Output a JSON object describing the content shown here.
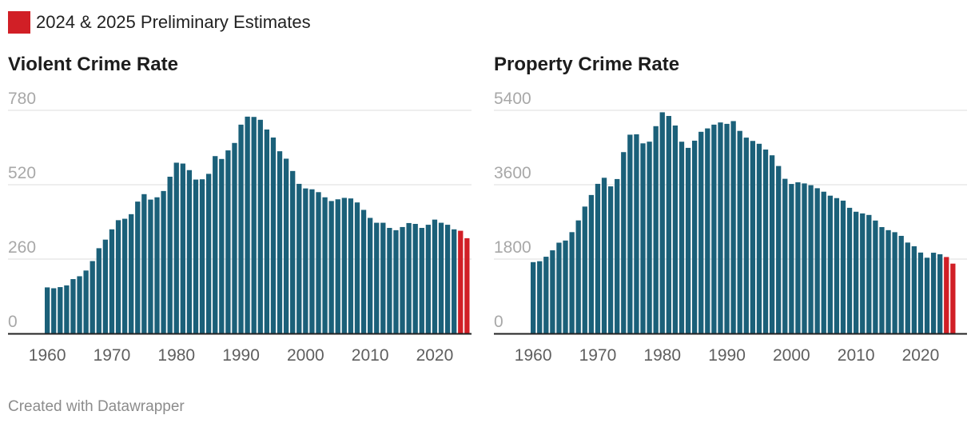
{
  "legend": {
    "label": "2024 & 2025 Preliminary Estimates",
    "color": "#d11f26"
  },
  "credit": "Created with Datawrapper",
  "colors": {
    "bar": "#1b6079",
    "estimate": "#d11f26",
    "grid": "#dddddd",
    "axis": "#222222"
  },
  "chart_data": [
    {
      "type": "bar",
      "title": "Violent Crime Rate",
      "ylim": [
        0,
        780
      ],
      "yticks": [
        "780",
        "520",
        "260",
        "0"
      ],
      "ytick_values": [
        780,
        520,
        260,
        0
      ],
      "xticks": [
        "1960",
        "1970",
        "1980",
        "1990",
        "2000",
        "2010",
        "2020"
      ],
      "xtick_values": [
        1960,
        1970,
        1980,
        1990,
        2000,
        2010,
        2020
      ],
      "estimate_years": [
        2024,
        2025
      ],
      "years": [
        1960,
        1961,
        1962,
        1963,
        1964,
        1965,
        1966,
        1967,
        1968,
        1969,
        1970,
        1971,
        1972,
        1973,
        1974,
        1975,
        1976,
        1977,
        1978,
        1979,
        1980,
        1981,
        1982,
        1983,
        1984,
        1985,
        1986,
        1987,
        1988,
        1989,
        1990,
        1991,
        1992,
        1993,
        1994,
        1995,
        1996,
        1997,
        1998,
        1999,
        2000,
        2001,
        2002,
        2003,
        2004,
        2005,
        2006,
        2007,
        2008,
        2009,
        2010,
        2011,
        2012,
        2013,
        2014,
        2015,
        2016,
        2017,
        2018,
        2019,
        2020,
        2021,
        2022,
        2023,
        2024,
        2025
      ],
      "values": [
        161,
        158,
        162,
        168,
        190,
        200,
        220,
        253,
        298,
        328,
        364,
        396,
        401,
        417,
        461,
        487,
        468,
        476,
        498,
        548,
        597,
        594,
        571,
        538,
        539,
        558,
        620,
        610,
        640,
        666,
        730,
        758,
        757,
        747,
        713,
        685,
        637,
        611,
        568,
        523,
        507,
        504,
        494,
        476,
        463,
        469,
        474,
        472,
        458,
        432,
        404,
        387,
        387,
        369,
        361,
        372,
        386,
        383,
        369,
        380,
        398,
        387,
        380,
        364,
        359,
        333
      ]
    },
    {
      "type": "bar",
      "title": "Property Crime Rate",
      "ylim": [
        0,
        5400
      ],
      "yticks": [
        "5400",
        "3600",
        "1800",
        "0"
      ],
      "ytick_values": [
        5400,
        3600,
        1800,
        0
      ],
      "xticks": [
        "1960",
        "1970",
        "1980",
        "1990",
        "2000",
        "2010",
        "2020"
      ],
      "xtick_values": [
        1960,
        1970,
        1980,
        1990,
        2000,
        2010,
        2020
      ],
      "estimate_years": [
        2024,
        2025
      ],
      "years": [
        1960,
        1961,
        1962,
        1963,
        1964,
        1965,
        1966,
        1967,
        1968,
        1969,
        1970,
        1971,
        1972,
        1973,
        1974,
        1975,
        1976,
        1977,
        1978,
        1979,
        1980,
        1981,
        1982,
        1983,
        1984,
        1985,
        1986,
        1987,
        1988,
        1989,
        1990,
        1991,
        1992,
        1993,
        1994,
        1995,
        1996,
        1997,
        1998,
        1999,
        2000,
        2001,
        2002,
        2003,
        2004,
        2005,
        2006,
        2007,
        2008,
        2009,
        2010,
        2011,
        2012,
        2013,
        2014,
        2015,
        2016,
        2017,
        2018,
        2019,
        2020,
        2021,
        2022,
        2023,
        2024,
        2025
      ],
      "values": [
        1726,
        1748,
        1857,
        2012,
        2197,
        2249,
        2452,
        2736,
        3071,
        3351,
        3621,
        3768,
        3560,
        3737,
        4389,
        4811,
        4820,
        4601,
        4642,
        5017,
        5353,
        5264,
        5033,
        4641,
        4492,
        4666,
        4881,
        4963,
        5054,
        5107,
        5073,
        5140,
        4903,
        4740,
        4660,
        4591,
        4451,
        4312,
        4053,
        3743,
        3618,
        3658,
        3631,
        3588,
        3515,
        3431,
        3335,
        3276,
        3215,
        3041,
        2946,
        2905,
        2868,
        2733,
        2574,
        2500,
        2451,
        2362,
        2200,
        2110,
        1958,
        1833,
        1954,
        1917,
        1850,
        1690
      ]
    }
  ]
}
